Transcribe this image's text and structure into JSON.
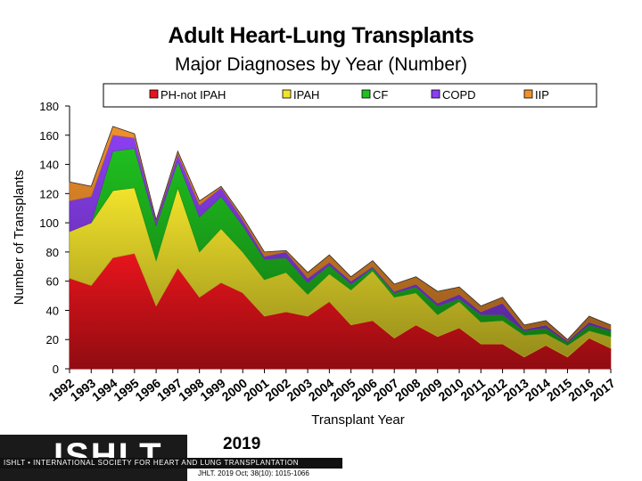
{
  "title": "Adult Heart-Lung Transplants",
  "subtitle": "Major Diagnoses by Year (Number)",
  "chart_data": {
    "type": "area",
    "stacked": true,
    "title": "Adult Heart-Lung Transplants",
    "subtitle": "Major Diagnoses by Year (Number)",
    "xlabel": "Transplant Year",
    "ylabel": "Number of Transplants",
    "ylim": [
      0,
      180
    ],
    "yticks": [
      0,
      20,
      40,
      60,
      80,
      100,
      120,
      140,
      160,
      180
    ],
    "legend_position": "top",
    "categories": [
      "1992",
      "1993",
      "1994",
      "1995",
      "1996",
      "1997",
      "1998",
      "1999",
      "2000",
      "2001",
      "2002",
      "2003",
      "2004",
      "2005",
      "2006",
      "2007",
      "2008",
      "2009",
      "2010",
      "2011",
      "2012",
      "2013",
      "2014",
      "2015",
      "2016",
      "2017"
    ],
    "series": [
      {
        "name": "PH-not IPAH",
        "color": "#e8141c",
        "values": [
          62,
          57,
          76,
          79,
          43,
          69,
          49,
          59,
          52,
          36,
          39,
          36,
          46,
          30,
          33,
          21,
          30,
          22,
          28,
          17,
          17,
          8,
          16,
          8,
          21,
          14
        ]
      },
      {
        "name": "IPAH",
        "color": "#f2e32b",
        "values": [
          32,
          43,
          46,
          45,
          31,
          55,
          31,
          37,
          28,
          25,
          27,
          15,
          19,
          24,
          34,
          28,
          22,
          15,
          18,
          15,
          16,
          15,
          8,
          8,
          5,
          8
        ]
      },
      {
        "name": "CF",
        "color": "#1fbf1f",
        "values": [
          0,
          0,
          27,
          27,
          24,
          18,
          24,
          22,
          18,
          14,
          10,
          8,
          6,
          4,
          2,
          3,
          4,
          6,
          2,
          5,
          4,
          3,
          4,
          2,
          4,
          4
        ]
      },
      {
        "name": "COPD",
        "color": "#8b3ff0",
        "values": [
          21,
          18,
          11,
          7,
          3,
          5,
          8,
          6,
          4,
          2,
          4,
          3,
          2,
          2,
          1,
          1,
          2,
          2,
          3,
          2,
          8,
          1,
          2,
          1,
          2,
          1
        ]
      },
      {
        "name": "IIP",
        "color": "#f0902c",
        "values": [
          13,
          7,
          6,
          3,
          1,
          2,
          3,
          1,
          2,
          3,
          1,
          4,
          5,
          3,
          4,
          5,
          5,
          8,
          5,
          4,
          4,
          3,
          3,
          1,
          4,
          3
        ]
      }
    ]
  },
  "footer": {
    "logo_text": "ISHLT",
    "logo_strip": "ISHLT • INTERNATIONAL SOCIETY FOR HEART AND LUNG TRANSPLANTATION",
    "year": "2019",
    "citation": "JHLT. 2019 Oct; 38(10): 1015-1066"
  }
}
